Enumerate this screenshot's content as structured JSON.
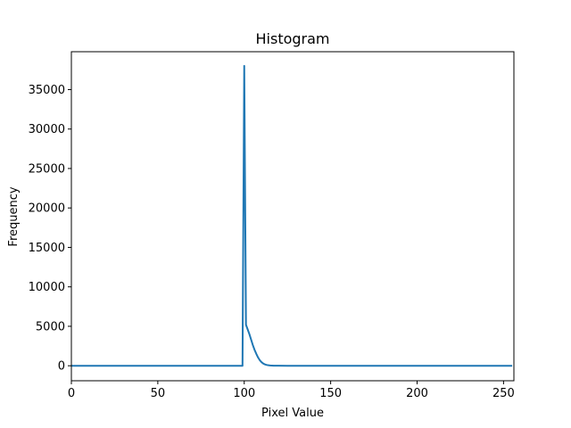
{
  "chart_data": {
    "type": "line",
    "title": "Histogram",
    "xlabel": "Pixel Value",
    "ylabel": "Frequency",
    "xlim": [
      0,
      256
    ],
    "ylim": [
      -1900,
      39800
    ],
    "xticks": [
      0,
      50,
      100,
      150,
      200,
      250
    ],
    "yticks": [
      0,
      5000,
      10000,
      15000,
      20000,
      25000,
      30000,
      35000
    ],
    "grid": false,
    "line_color": "#1f77b4",
    "series": [
      {
        "x": [
          0,
          98,
          99,
          100,
          101,
          102,
          103,
          104,
          105,
          106,
          107,
          108,
          109,
          110,
          111,
          112,
          113,
          114,
          115,
          116,
          117,
          118,
          120,
          125,
          130,
          140,
          150,
          200,
          255
        ],
        "y": [
          0,
          0,
          0,
          38000,
          5200,
          4600,
          4000,
          3300,
          2600,
          2000,
          1500,
          1050,
          700,
          450,
          280,
          170,
          100,
          60,
          35,
          20,
          10,
          5,
          2,
          0,
          0,
          0,
          0,
          0,
          0
        ]
      }
    ]
  }
}
